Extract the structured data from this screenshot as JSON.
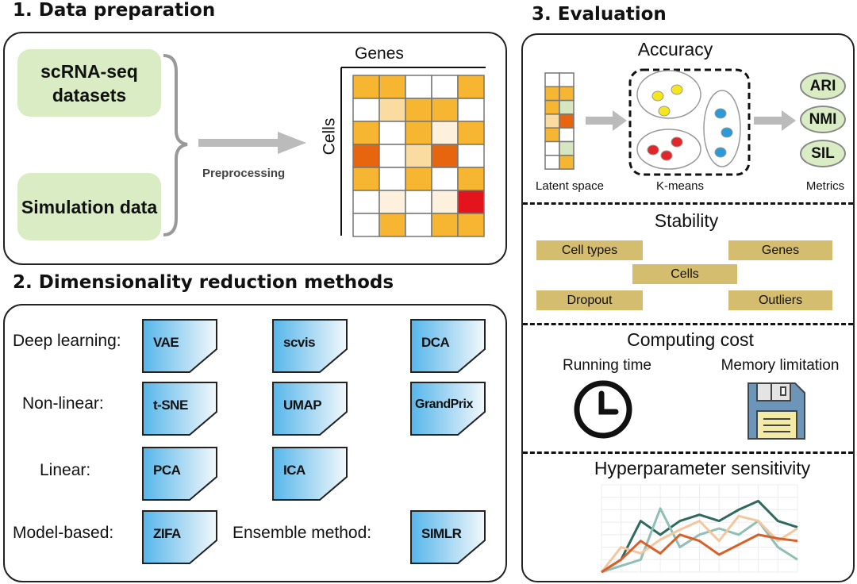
{
  "section1": {
    "title": "1. Data preparation",
    "sources": [
      "scRNA-seq datasets",
      "Simulation data"
    ],
    "arrow_label": "Preprocessing",
    "heatmap": {
      "col_label": "Genes",
      "row_label": "Cells",
      "levels": [
        [
          "O",
          "O",
          "W",
          "W",
          "O"
        ],
        [
          "W",
          "L",
          "O",
          "O",
          "W"
        ],
        [
          "O",
          "W",
          "O",
          "V",
          "O"
        ],
        [
          "D",
          "W",
          "L",
          "D",
          "W"
        ],
        [
          "O",
          "W",
          "O",
          "W",
          "O"
        ],
        [
          "W",
          "V",
          "W",
          "V",
          "R"
        ],
        [
          "W",
          "O",
          "W",
          "O",
          "O"
        ]
      ],
      "colors": {
        "W": "#ffffff",
        "V": "#fdf0dc",
        "L": "#fbdca0",
        "O": "#f6b632",
        "D": "#e8650f",
        "R": "#e3141b",
        "G": "#d5e6c0"
      }
    }
  },
  "section2": {
    "title": "2. Dimensionality reduction methods",
    "categories": [
      {
        "label": "Deep learning:",
        "methods": [
          "VAE",
          "scvis",
          "DCA"
        ]
      },
      {
        "label": "Non-linear:",
        "methods": [
          "t-SNE",
          "UMAP",
          "GrandPrix"
        ]
      },
      {
        "label": "Linear:",
        "methods": [
          "PCA",
          "ICA"
        ]
      },
      {
        "label": "Model-based:",
        "methods": [
          "ZIFA"
        ]
      },
      {
        "label": "Ensemble method:",
        "methods": [
          "SIMLR"
        ]
      }
    ]
  },
  "section3": {
    "title": "3. Evaluation",
    "accuracy": {
      "title": "Accuracy",
      "latent_label": "Latent space",
      "kmeans_label": "K-means",
      "metrics_label": "Metrics",
      "metrics": [
        "ARI",
        "NMI",
        "SIL"
      ],
      "latent": [
        [
          "W",
          "W"
        ],
        [
          "O",
          "O"
        ],
        [
          "O",
          "G"
        ],
        [
          "L",
          "D"
        ],
        [
          "O",
          "W"
        ],
        [
          "W",
          "G"
        ],
        [
          "W",
          "O"
        ]
      ],
      "cluster_colors": [
        "#f4e61c",
        "#e3262a",
        "#2d9ad8"
      ]
    },
    "stability": {
      "title": "Stability",
      "items": [
        "Cell types",
        "Genes",
        "Cells",
        "Dropout",
        "Outliers"
      ]
    },
    "computing": {
      "title": "Computing cost",
      "items": [
        "Running time",
        "Memory limitation"
      ],
      "icons": [
        "clock-icon",
        "floppy-disk-icon"
      ]
    },
    "hyper": {
      "title": "Hyperparameter sensitivity"
    }
  },
  "chart_data": {
    "type": "line",
    "grid": true,
    "x": [
      1,
      2,
      3,
      4,
      5,
      6,
      7,
      8,
      9,
      10,
      11
    ],
    "ylim": [
      0,
      7
    ],
    "series": [
      {
        "color": "#2f6a5c",
        "values": [
          0,
          1,
          4.1,
          3,
          4.1,
          4.6,
          4.1,
          5,
          5.7,
          4.1,
          3.6
        ]
      },
      {
        "color": "#8fbfb5",
        "values": [
          0,
          0.5,
          1,
          5.1,
          2,
          3,
          3.5,
          3,
          4.1,
          2,
          1
        ]
      },
      {
        "color": "#f3c79e",
        "values": [
          0,
          2,
          1.5,
          2.6,
          3.4,
          4.1,
          2.5,
          4.5,
          4.1,
          2.5,
          3.5
        ]
      },
      {
        "color": "#d9602a",
        "values": [
          0,
          1,
          2.5,
          1.5,
          3,
          2.5,
          1.4,
          2.2,
          3,
          2.7,
          2.5
        ]
      }
    ]
  }
}
